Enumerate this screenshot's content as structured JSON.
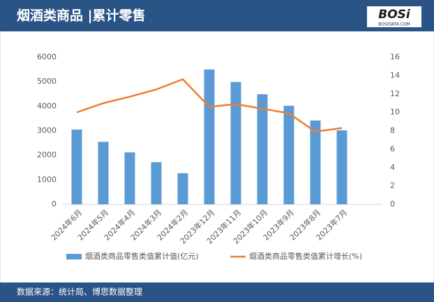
{
  "header": {
    "title": "烟酒类商品 |累计零售",
    "logo": "BOSi",
    "logo_sub": "BOSIDATA.COM"
  },
  "chart_data": {
    "type": "bar-line",
    "categories": [
      "2024年6月",
      "2024年5月",
      "2024年4月",
      "2024年3月",
      "2024年2月",
      "2023年12月",
      "2023年11月",
      "2023年10月",
      "2023年9月",
      "2023年8月",
      "2023年7月"
    ],
    "series": [
      {
        "name": "烟酒类商品零售类值累计值(亿元)",
        "color": "#5b9bd5",
        "type": "bar",
        "values": [
          3050,
          2550,
          2120,
          1720,
          1270,
          5500,
          4990,
          4490,
          4020,
          3420,
          3020
        ]
      },
      {
        "name": "烟酒类商品零售类值累计增长(%)",
        "color": "#ed7d31",
        "type": "line",
        "axis": "y2",
        "values": [
          10.0,
          11.0,
          11.7,
          12.5,
          13.6,
          10.6,
          10.9,
          10.4,
          9.9,
          7.9,
          8.3
        ]
      }
    ],
    "ylim": [
      0,
      6000
    ],
    "yticks": [
      0,
      1000,
      2000,
      3000,
      4000,
      5000,
      6000
    ],
    "y2lim": [
      0,
      16
    ],
    "y2ticks": [
      0,
      2,
      4,
      6,
      8,
      10,
      12,
      14,
      16
    ]
  },
  "footer": {
    "source": "数据来源：统计局、博思数据整理"
  }
}
